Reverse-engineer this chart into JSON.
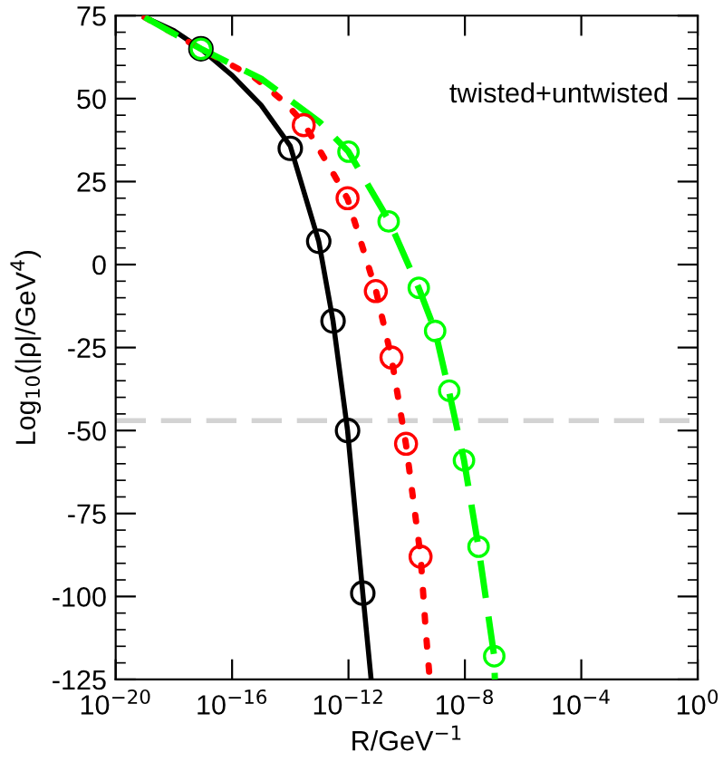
{
  "chart_data": {
    "type": "line",
    "ylabel": "Log$_{10}$(|ρ|/GeV$^{4}$)",
    "xlabel": "R/GeV$^{−1}$",
    "log": "x",
    "xlim": [
      1e-20,
      1
    ],
    "xticks": [
      {
        "value": 1e-20,
        "label": "10$^{−20}$"
      },
      {
        "value": 1e-16,
        "label": "10$^{−16}$"
      },
      {
        "value": 1e-12,
        "label": "10$^{−12}$"
      },
      {
        "value": 1e-08,
        "label": "10$^{−8}$"
      },
      {
        "value": 0.0001,
        "label": "10$^{−4}$"
      },
      {
        "value": 1,
        "label": "10$^{0}$"
      }
    ],
    "ylim": [
      -125,
      75
    ],
    "yticks": [
      -125,
      -100,
      -75,
      -50,
      -25,
      0,
      25,
      50,
      75
    ],
    "grid": false,
    "legend": false,
    "annotations": [
      "twisted+untwisted"
    ],
    "ref_lines": [
      {
        "axis": "y",
        "value": -47,
        "color": "#d3d3d3",
        "line_style": "dashed"
      }
    ],
    "series": [
      {
        "color": "#000000",
        "line_style": "solid",
        "marker": "none",
        "x": [
          1e-19,
          1e-18,
          8.5e-18,
          1e-16,
          1e-15,
          1e-14,
          9.5e-14,
          2.95e-13,
          9.3e-13,
          3.1e-12,
          6e-12
        ],
        "values": [
          74.5,
          70.5,
          65,
          57,
          48,
          35.7,
          7,
          -17,
          -50,
          -99,
          -125
        ]
      },
      {
        "color": "#ff0000",
        "line_style": "dotted",
        "marker": "none",
        "x": [
          1e-19,
          8.5e-18,
          5.8e-16,
          6.3e-15,
          2.9e-14,
          3.2e-13,
          9.3e-13,
          8.7e-12,
          3e-11,
          9.5e-11,
          3e-10,
          4.5e-10,
          6.2e-10
        ],
        "values": [
          74.5,
          65,
          56.4,
          49,
          42.6,
          27,
          19.8,
          -7.7,
          -28.1,
          -54.3,
          -87.7,
          -110,
          -125
        ]
      },
      {
        "color": "#00ff00",
        "line_style": "dashed",
        "marker": "none",
        "x": [
          1e-19,
          8.5e-18,
          1e-15,
          1e-13,
          1e-12,
          2.4e-11,
          2.6e-10,
          9.5e-10,
          2.9e-09,
          9.3e-09,
          2.95e-08,
          1.02e-07,
          1.07e-07
        ],
        "values": [
          74.5,
          65,
          56,
          43,
          34,
          13.4,
          -7.1,
          -19.9,
          -38.5,
          -58.9,
          -85.3,
          -118.1,
          -125
        ]
      },
      {
        "type": "scatter",
        "color": "#000000",
        "marker": "circle",
        "x": [
          8.5e-18,
          1e-14,
          9.5e-14,
          2.95e-13,
          9.3e-13,
          3.1e-12
        ],
        "values": [
          65,
          35,
          7,
          -17,
          -50,
          -99
        ]
      },
      {
        "type": "scatter",
        "color": "#ff0000",
        "marker": "circle",
        "x": [
          2.9e-14,
          9.3e-13,
          8.7e-12,
          3e-11,
          9.5e-11,
          3e-10
        ],
        "values": [
          42,
          20,
          -8,
          -28,
          -54,
          -88
        ]
      },
      {
        "type": "scatter",
        "color": "#00ff00",
        "marker": "circle",
        "x": [
          8.5e-18,
          1e-12,
          2.4e-11,
          2.6e-10,
          9.5e-10,
          2.9e-09,
          9.3e-09,
          2.95e-08,
          1.02e-07
        ],
        "values": [
          65,
          34,
          13,
          -7,
          -20,
          -38,
          -59,
          -85,
          -118
        ]
      }
    ]
  }
}
